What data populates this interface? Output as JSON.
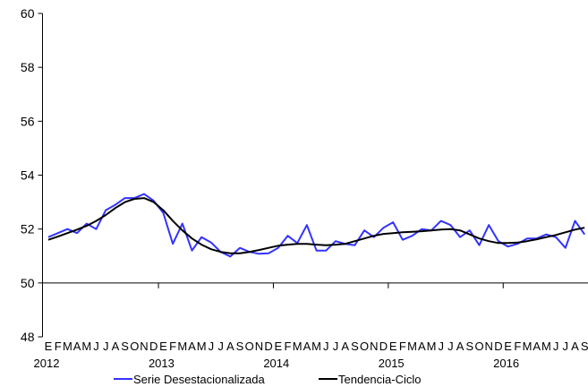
{
  "chart_data": {
    "type": "line",
    "title": "",
    "xlabel": "",
    "ylabel": "",
    "ylim": [
      48,
      60
    ],
    "yticks": [
      48,
      50,
      52,
      54,
      56,
      58,
      60
    ],
    "grid": false,
    "x_reference_line": 50,
    "month_letters": [
      "E",
      "F",
      "M",
      "A",
      "M",
      "J",
      "J",
      "A",
      "S",
      "O",
      "N",
      "D"
    ],
    "years": [
      "2012",
      "2013",
      "2014",
      "2015",
      "2016"
    ],
    "period_start": "2012-01",
    "period_end": "2016-09",
    "legend_position": "bottom",
    "series": [
      {
        "name": "Serie Desestacionalizada",
        "color": "#3333ff",
        "values": [
          51.7,
          51.85,
          52.0,
          51.85,
          52.2,
          52.0,
          52.7,
          52.9,
          53.15,
          53.15,
          53.3,
          53.05,
          52.6,
          51.45,
          52.2,
          51.2,
          51.7,
          51.5,
          51.15,
          50.98,
          51.3,
          51.15,
          51.08,
          51.1,
          51.3,
          51.75,
          51.48,
          52.15,
          51.2,
          51.2,
          51.55,
          51.45,
          51.4,
          51.95,
          51.7,
          52.05,
          52.25,
          51.6,
          51.75,
          52.0,
          51.95,
          52.3,
          52.15,
          51.7,
          51.95,
          51.4,
          52.15,
          51.55,
          51.35,
          51.45,
          51.65,
          51.65,
          51.8,
          51.7,
          51.3,
          52.3,
          51.8
        ]
      },
      {
        "name": "Tendencia-Ciclo",
        "color": "#000000",
        "values": [
          51.6,
          51.72,
          51.85,
          51.98,
          52.12,
          52.3,
          52.52,
          52.78,
          53.0,
          53.12,
          53.15,
          53.0,
          52.7,
          52.3,
          51.95,
          51.65,
          51.42,
          51.25,
          51.15,
          51.1,
          51.1,
          51.15,
          51.22,
          51.3,
          51.38,
          51.42,
          51.45,
          51.45,
          51.42,
          51.4,
          51.42,
          51.45,
          51.55,
          51.65,
          51.75,
          51.82,
          51.85,
          51.88,
          51.9,
          51.92,
          51.95,
          51.98,
          52.0,
          51.95,
          51.8,
          51.65,
          51.55,
          51.48,
          51.48,
          51.5,
          51.55,
          51.62,
          51.7,
          51.78,
          51.88,
          51.98,
          52.05
        ]
      }
    ]
  }
}
